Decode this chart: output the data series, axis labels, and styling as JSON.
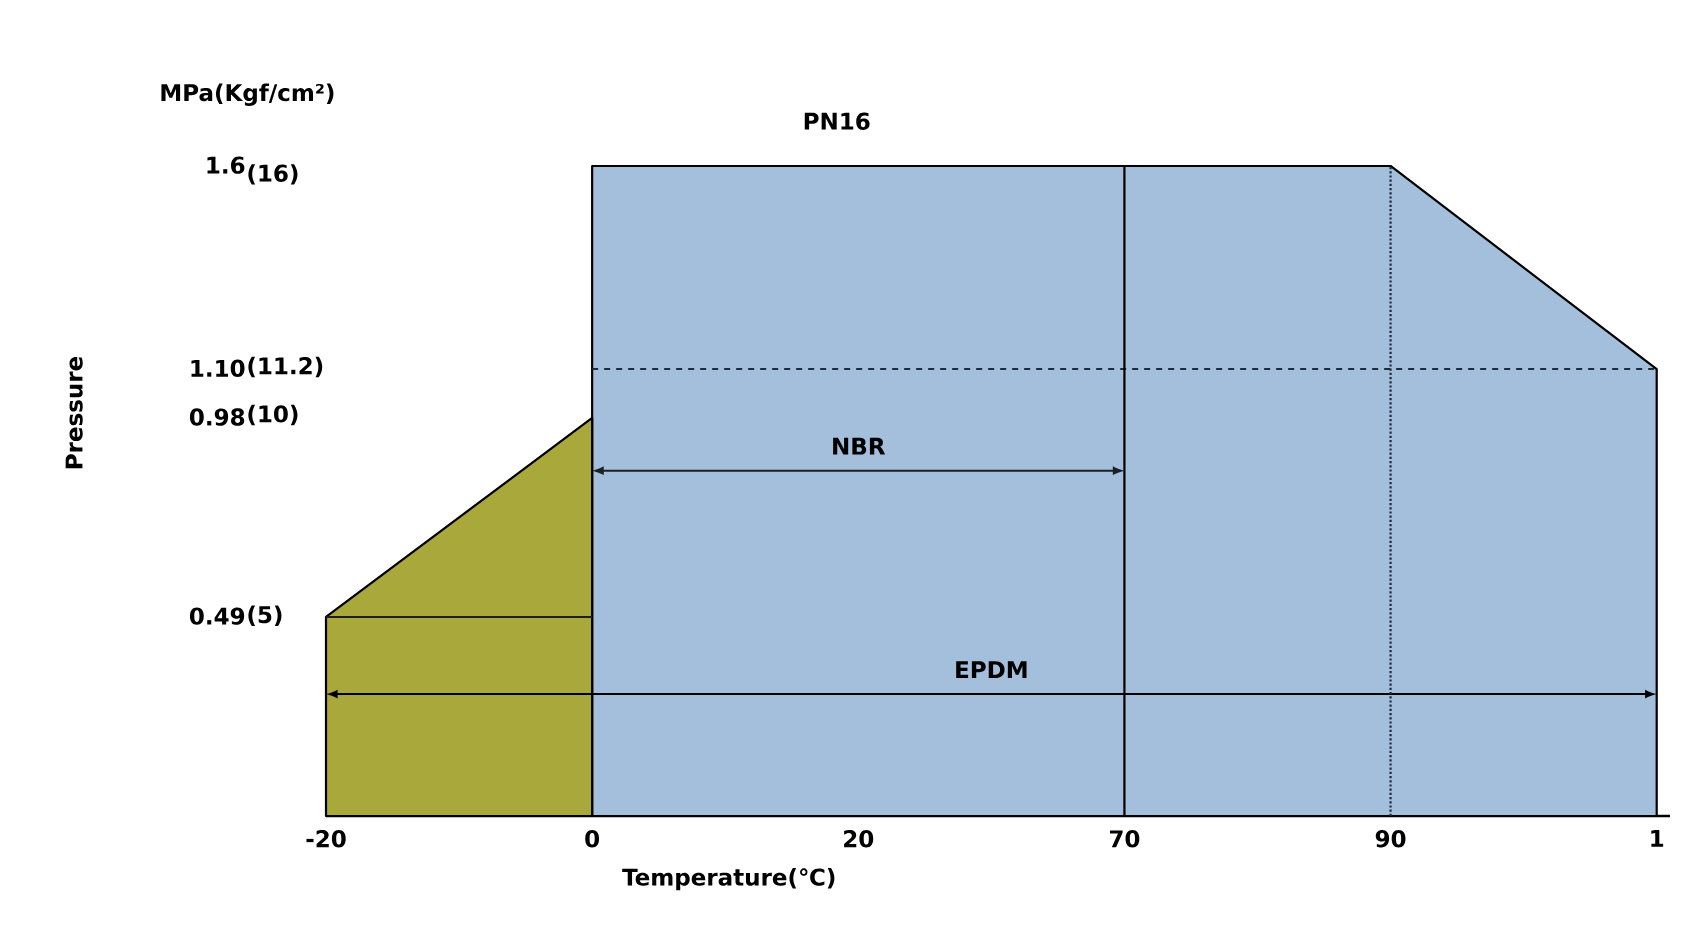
{
  "chart_data": {
    "type": "area",
    "title": "PN16",
    "xlabel": "Temperature(℃)",
    "ylabel": "Pressure",
    "annotations": [
      "MPa(Kgf/cm²)"
    ],
    "y2lim": [
      0,
      16.2
    ],
    "y2ticks": [
      {
        "value": 5,
        "label": "(5)"
      },
      {
        "value": 10,
        "label": "(10)"
      },
      {
        "value": 11.2,
        "label": "(11.2)"
      },
      {
        "value": 16,
        "label": "(16)"
      }
    ],
    "categories": [
      "-20",
      "0",
      "20",
      "70",
      "90",
      "1"
    ],
    "ylim": [
      0,
      1.6
    ],
    "yticks": [
      0.49,
      0.98,
      {
        "value": 1.1,
        "label": "1.10"
      },
      1.6
    ],
    "series": [
      {
        "color": "#a3bfdc",
        "values": [
          null,
          1.6,
          1.6,
          1.6,
          1.6,
          1.1
        ]
      },
      {
        "color": "#a9a83a",
        "values": [
          0.49,
          0.98,
          null,
          null,
          null,
          null
        ]
      },
      {
        "type": "line",
        "color": "#1c1f24",
        "values": [
          0.49,
          0.49,
          null,
          null,
          null,
          null
        ]
      },
      {
        "type": "line",
        "color": "#1f2a3a",
        "line_style": "dashed",
        "values": [
          null,
          1.1,
          1.1,
          1.1,
          1.1,
          1.1
        ]
      },
      {
        "type": "line",
        "name": "NBR",
        "color": "#1c1f24",
        "values": [
          null,
          0.85,
          0.85,
          0.85,
          null,
          null
        ]
      },
      {
        "type": "line",
        "name": "EPDM",
        "color": "#000000",
        "values": [
          0.3,
          0.3,
          0.3,
          0.3,
          0.3,
          0.3
        ]
      }
    ],
    "ref_lines": [
      {
        "axis": "x",
        "value": "70",
        "color": "#000000"
      },
      {
        "axis": "x",
        "value": "90",
        "color": "#1f2a3a",
        "line_style": "dotted"
      }
    ]
  }
}
